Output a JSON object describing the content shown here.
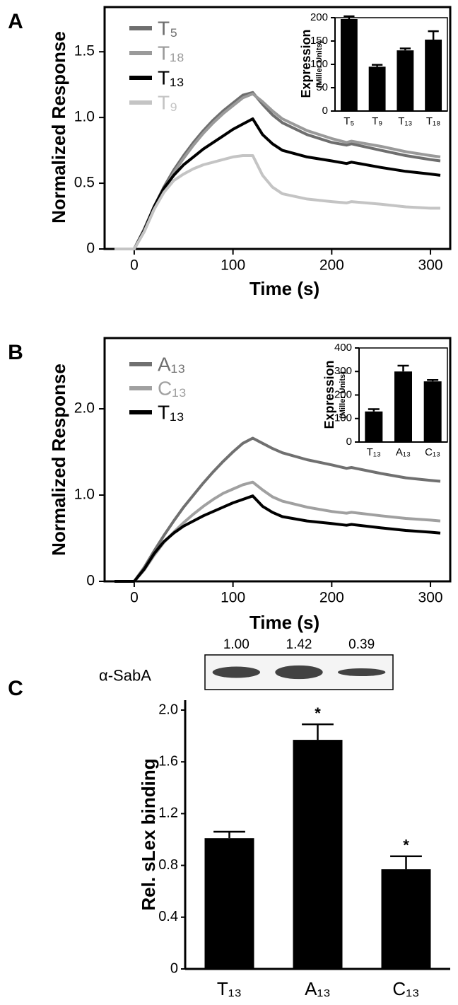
{
  "chart_data": [
    {
      "type": "line",
      "panel_label": "A",
      "x_label": "Time (s)",
      "y_label": "Normalized Response",
      "x": [
        -20,
        0,
        10,
        20,
        30,
        40,
        50,
        60,
        70,
        80,
        90,
        100,
        110,
        120,
        130,
        140,
        150,
        175,
        200,
        215,
        220,
        250,
        275,
        300,
        310
      ],
      "series": [
        {
          "name": "T₅",
          "color": "#6e6e6e",
          "values": [
            0,
            0,
            0.15,
            0.32,
            0.47,
            0.6,
            0.71,
            0.81,
            0.9,
            0.98,
            1.05,
            1.11,
            1.17,
            1.19,
            1.1,
            1.02,
            0.96,
            0.87,
            0.81,
            0.79,
            0.8,
            0.75,
            0.71,
            0.68,
            0.67
          ]
        },
        {
          "name": "T₁₈",
          "color": "#9a9a9a",
          "values": [
            0,
            0,
            0.13,
            0.3,
            0.45,
            0.58,
            0.69,
            0.79,
            0.88,
            0.96,
            1.03,
            1.09,
            1.15,
            1.18,
            1.12,
            1.05,
            0.99,
            0.9,
            0.84,
            0.81,
            0.82,
            0.78,
            0.74,
            0.71,
            0.7
          ]
        },
        {
          "name": "T₁₃",
          "color": "#000000",
          "values": [
            0,
            0,
            0.14,
            0.32,
            0.46,
            0.56,
            0.64,
            0.7,
            0.76,
            0.81,
            0.86,
            0.91,
            0.95,
            0.99,
            0.87,
            0.8,
            0.75,
            0.7,
            0.67,
            0.65,
            0.66,
            0.62,
            0.59,
            0.57,
            0.56
          ]
        },
        {
          "name": "T₉",
          "color": "#c4c4c4",
          "values": [
            0,
            0,
            0.13,
            0.3,
            0.43,
            0.52,
            0.57,
            0.61,
            0.64,
            0.66,
            0.68,
            0.7,
            0.71,
            0.71,
            0.56,
            0.47,
            0.42,
            0.38,
            0.36,
            0.35,
            0.36,
            0.34,
            0.32,
            0.31,
            0.31
          ]
        }
      ],
      "xlim": [
        -30,
        320
      ],
      "xticks": [
        0,
        100,
        200,
        300
      ],
      "ylim": [
        0,
        1.84
      ],
      "yticks": [
        0,
        0.5,
        {
          "value": 1,
          "label": "1.0"
        },
        1.5
      ]
    },
    {
      "type": "bar",
      "y_label": "Expression",
      "y_label_sub": "(Miller Units)",
      "categories": [
        "T₅",
        "T₉",
        "T₁₃",
        "T₁₈"
      ],
      "values": [
        197,
        95,
        130,
        153
      ],
      "errors": [
        6,
        4,
        4,
        18
      ],
      "color": "#000000",
      "ylim": [
        0,
        200
      ],
      "yticks": [
        0,
        50,
        100,
        150,
        200
      ]
    },
    {
      "type": "line",
      "panel_label": "B",
      "x_label": "Time (s)",
      "y_label": "Normalized Response",
      "x": [
        -20,
        0,
        10,
        20,
        30,
        40,
        50,
        60,
        70,
        80,
        90,
        100,
        110,
        120,
        130,
        140,
        150,
        175,
        200,
        215,
        220,
        250,
        275,
        300,
        310
      ],
      "series": [
        {
          "name": "A₁₃",
          "color": "#707070",
          "values": [
            0,
            0,
            0.16,
            0.35,
            0.53,
            0.7,
            0.86,
            1.0,
            1.14,
            1.27,
            1.39,
            1.5,
            1.6,
            1.66,
            1.6,
            1.54,
            1.49,
            1.41,
            1.35,
            1.31,
            1.32,
            1.25,
            1.2,
            1.17,
            1.16
          ]
        },
        {
          "name": "C₁₃",
          "color": "#a0a0a0",
          "values": [
            0,
            0,
            0.13,
            0.3,
            0.45,
            0.57,
            0.68,
            0.78,
            0.87,
            0.95,
            1.02,
            1.07,
            1.12,
            1.15,
            1.06,
            0.98,
            0.93,
            0.86,
            0.81,
            0.79,
            0.8,
            0.76,
            0.73,
            0.71,
            0.7
          ]
        },
        {
          "name": "T₁₃",
          "color": "#000000",
          "values": [
            0,
            0,
            0.14,
            0.32,
            0.46,
            0.56,
            0.64,
            0.7,
            0.76,
            0.81,
            0.86,
            0.91,
            0.95,
            0.99,
            0.87,
            0.8,
            0.75,
            0.7,
            0.67,
            0.65,
            0.66,
            0.62,
            0.59,
            0.57,
            0.56
          ]
        }
      ],
      "xlim": [
        -30,
        320
      ],
      "xticks": [
        0,
        100,
        200,
        300
      ],
      "ylim": [
        0,
        2.82
      ],
      "yticks": [
        0,
        {
          "value": 1,
          "label": "1.0"
        },
        {
          "value": 2,
          "label": "2.0"
        }
      ]
    },
    {
      "type": "bar",
      "y_label": "Expression",
      "y_label_sub": "(Miller Units)",
      "categories": [
        "T₁₃",
        "A₁₃",
        "C₁₃"
      ],
      "values": [
        130,
        300,
        258
      ],
      "errors": [
        10,
        25,
        6
      ],
      "color": "#000000",
      "ylim": [
        0,
        400
      ],
      "yticks": [
        0,
        100,
        200,
        300,
        400
      ]
    },
    {
      "type": "bar",
      "panel_label": "C",
      "y_label": "Rel. sLex binding",
      "categories": [
        "T₁₃",
        "A₁₃",
        "C₁₃"
      ],
      "values": [
        1.01,
        1.77,
        0.77
      ],
      "errors": [
        0.05,
        0.12,
        0.1
      ],
      "color": "#000000",
      "markers": [
        null,
        "*",
        "*"
      ],
      "ylim": [
        0,
        2
      ],
      "yticks": [
        0,
        0.4,
        0.8,
        1.2,
        1.6,
        {
          "value": 2,
          "label": "2.0"
        }
      ],
      "blot": {
        "label": "α-SabA",
        "values": [
          1,
          1.42,
          0.39
        ],
        "value_labels": [
          "1.00",
          "1.42",
          "0.39"
        ]
      }
    }
  ]
}
